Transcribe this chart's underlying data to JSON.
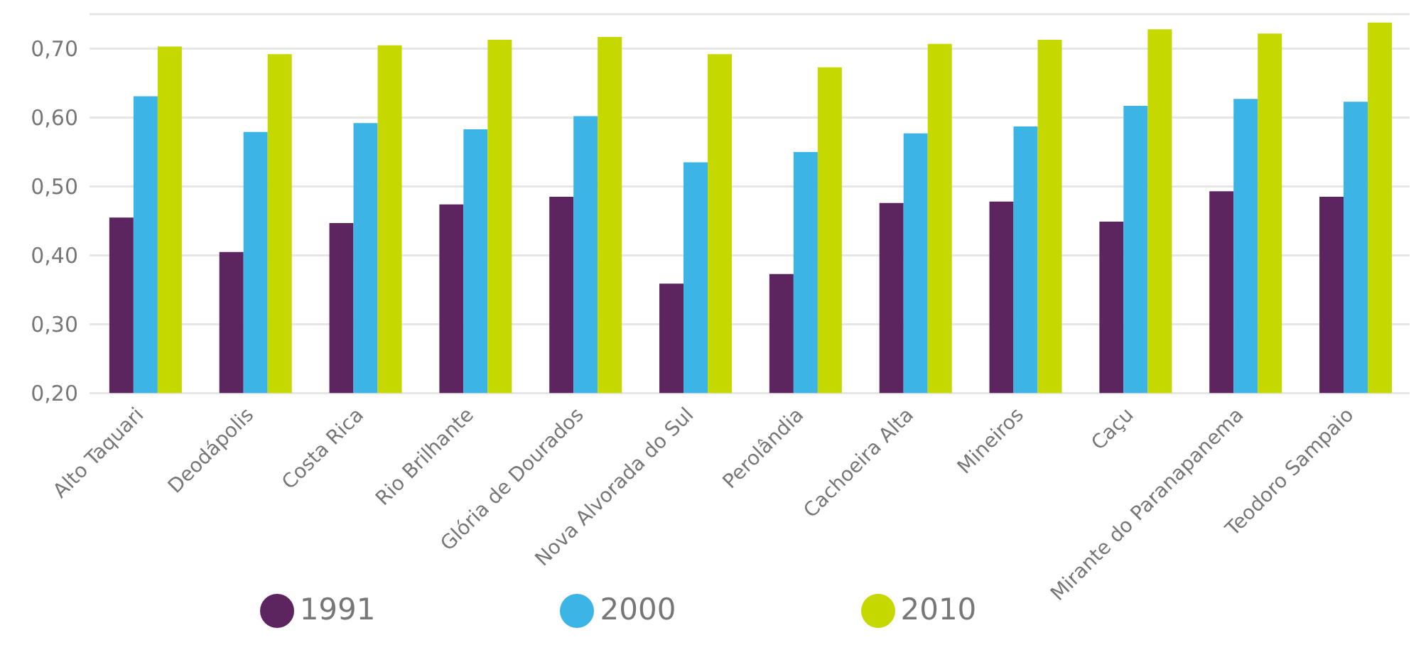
{
  "chart_data": {
    "type": "bar",
    "categories": [
      "Alto Taquari",
      "Deodápolis",
      "Costa Rica",
      "Rio Brilhante",
      "Glória de Dourados",
      "Nova Alvorada do Sul",
      "Perolândia",
      "Cachoeira Alta",
      "Mineiros",
      "Caçu",
      "Mirante do Paranapanema",
      "Teodoro Sampaio"
    ],
    "series": [
      {
        "name": "1991",
        "color": "#5c2560",
        "values": [
          0.455,
          0.405,
          0.447,
          0.474,
          0.485,
          0.359,
          0.373,
          0.476,
          0.478,
          0.449,
          0.493,
          0.485
        ]
      },
      {
        "name": "2000",
        "color": "#3cb4e6",
        "values": [
          0.631,
          0.579,
          0.592,
          0.583,
          0.602,
          0.535,
          0.55,
          0.577,
          0.587,
          0.617,
          0.627,
          0.623
        ]
      },
      {
        "name": "2010",
        "color": "#c5d800",
        "values": [
          0.703,
          0.692,
          0.705,
          0.713,
          0.717,
          0.692,
          0.673,
          0.707,
          0.713,
          0.728,
          0.722,
          0.738
        ]
      }
    ],
    "ylim": [
      0.2,
      0.75
    ],
    "yticks": [
      {
        "value": 0.2,
        "label": "0,20"
      },
      {
        "value": 0.3,
        "label": "0,30"
      },
      {
        "value": 0.4,
        "label": "0,40"
      },
      {
        "value": 0.5,
        "label": "0,50"
      },
      {
        "value": 0.6,
        "label": "0,60"
      },
      {
        "value": 0.7,
        "label": "0,70"
      }
    ],
    "grid": "y",
    "legend": "bottom"
  }
}
